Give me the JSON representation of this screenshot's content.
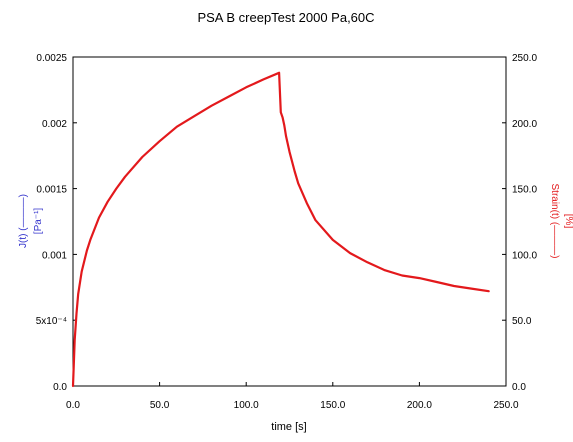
{
  "chart_data": {
    "type": "line",
    "title": "PSA B creepTest 2000 Pa,60C",
    "xlabel": "time [s]",
    "ylabel_left_top": "J(t) (———)",
    "ylabel_left_bottom": "[Pa⁻¹]",
    "ylabel_right_top": "Strain(t) (———)",
    "ylabel_right_bottom": "[%]",
    "xlim": [
      0,
      250
    ],
    "ylim_left": [
      0,
      0.0025
    ],
    "ylim_right": [
      0,
      250
    ],
    "x_ticks": [
      "0.0",
      "50.0",
      "100.0",
      "150.0",
      "200.0",
      "250.0"
    ],
    "y_left_ticks": [
      "0.0",
      "5x10⁻⁴",
      "0.001",
      "0.0015",
      "0.002",
      "0.0025"
    ],
    "y_right_ticks": [
      "0.0",
      "50.0",
      "100.0",
      "150.0",
      "200.0",
      "250.0"
    ],
    "grid": false,
    "colors": {
      "series": "#e3191c",
      "left_axis_label": "#3333cc",
      "right_axis_label": "#e3191c",
      "frame": "#000000"
    },
    "series": [
      {
        "axis": "right",
        "x": [
          0,
          1,
          2,
          3,
          5,
          8,
          10,
          15,
          20,
          25,
          30,
          40,
          50,
          60,
          70,
          80,
          90,
          100,
          110,
          119,
          120,
          121,
          122,
          123,
          125,
          128,
          130,
          135,
          140,
          150,
          160,
          170,
          180,
          190,
          200,
          210,
          220,
          230,
          240
        ],
        "y": [
          0,
          35,
          55,
          70,
          87,
          103,
          111,
          128,
          140,
          150,
          159,
          174,
          186,
          197,
          205,
          213,
          220,
          227,
          233,
          238,
          208,
          204,
          198,
          190,
          178,
          163,
          154,
          139,
          126,
          111,
          101,
          94,
          88,
          84,
          82,
          79,
          76,
          74,
          72
        ]
      }
    ]
  }
}
